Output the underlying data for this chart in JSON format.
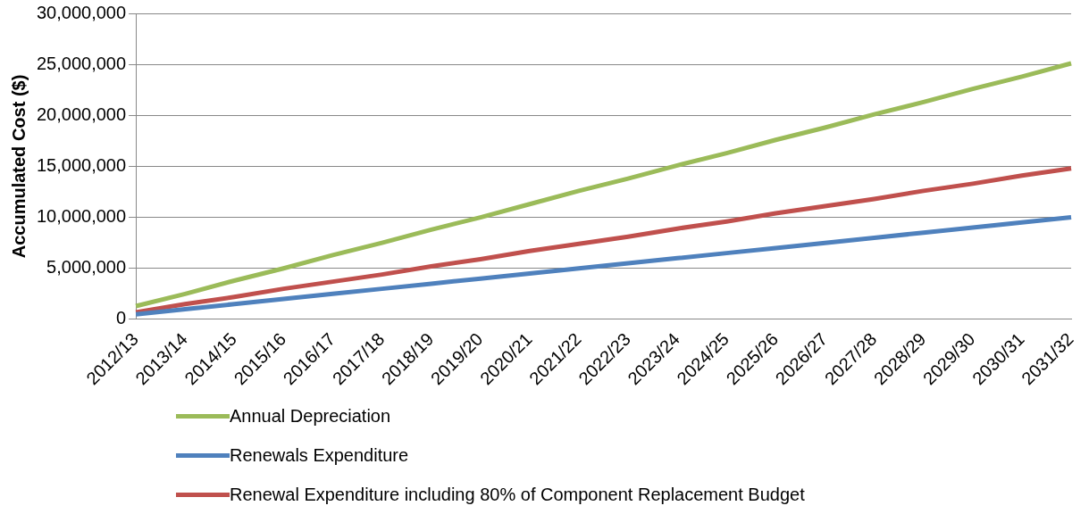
{
  "chart_data": {
    "type": "line",
    "ylabel": "Accumulated Cost ($)",
    "categories": [
      "2012/13",
      "2013/14",
      "2014/15",
      "2015/16",
      "2016/17",
      "2017/18",
      "2018/19",
      "2019/20",
      "2020/21",
      "2021/22",
      "2022/23",
      "2023/24",
      "2024/25",
      "2025/26",
      "2026/27",
      "2027/28",
      "2028/29",
      "2029/30",
      "2030/31",
      "2031/32"
    ],
    "series": [
      {
        "name": "Annual Depreciation",
        "color": "#9bbb59",
        "values": [
          1300000,
          2500000,
          3800000,
          5000000,
          6300000,
          7500000,
          8800000,
          10000000,
          11300000,
          12600000,
          13800000,
          15100000,
          16300000,
          17600000,
          18800000,
          20100000,
          21300000,
          22600000,
          23800000,
          25100000
        ]
      },
      {
        "name": "Renewals Expenditure",
        "color": "#4f81bd",
        "values": [
          500000,
          1000000,
          1500000,
          2000000,
          2500000,
          3000000,
          3500000,
          4000000,
          4500000,
          5000000,
          5500000,
          6000000,
          6500000,
          7000000,
          7500000,
          8000000,
          8500000,
          9000000,
          9500000,
          10000000
        ]
      },
      {
        "name": "Renewal Expenditure including 80% of Component Replacement Budget",
        "color": "#c0504d",
        "values": [
          700000,
          1500000,
          2200000,
          3000000,
          3700000,
          4400000,
          5200000,
          5900000,
          6700000,
          7400000,
          8100000,
          8900000,
          9600000,
          10400000,
          11100000,
          11800000,
          12600000,
          13300000,
          14100000,
          14800000
        ]
      }
    ],
    "ylim": [
      0,
      30000000
    ],
    "yticks": [
      0,
      {
        "value": 5000000,
        "label": "5,000,000"
      },
      {
        "value": 10000000,
        "label": "10,000,000"
      },
      {
        "value": 15000000,
        "label": "15,000,000"
      },
      {
        "value": 20000000,
        "label": "20,000,000"
      },
      {
        "value": 25000000,
        "label": "25,000,000"
      },
      {
        "value": 30000000,
        "label": "30,000,000"
      }
    ],
    "grid": "y",
    "legend": "bottom",
    "marker": "none",
    "line_style": "solid"
  }
}
